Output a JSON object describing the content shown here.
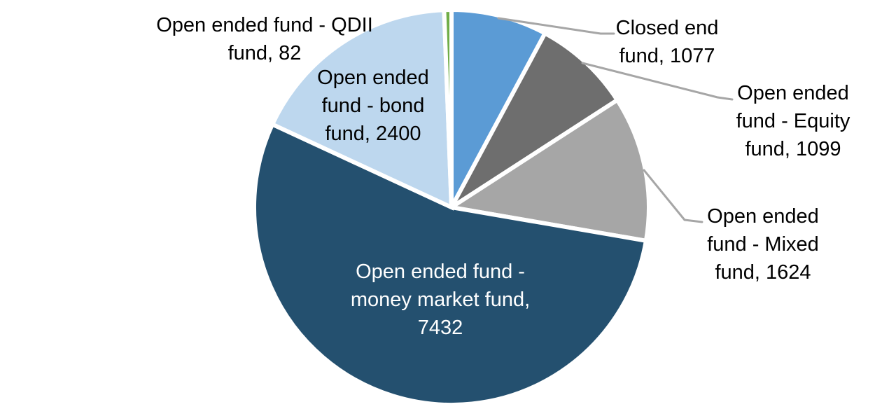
{
  "chart_data": {
    "type": "pie",
    "title": "",
    "legend": "none",
    "background": "#FFFFFF",
    "total": 13714,
    "start_angle_deg": 0,
    "direction": "clockwise",
    "leader_line_color": "#A6A6A6",
    "slices": [
      {
        "id": "closed-end-fund",
        "label": "Closed end fund",
        "value": 1077,
        "color": "#5B9BD5",
        "label_placement": "outside-with-leader",
        "label_lines": [
          "Closed end",
          "fund, 1077"
        ]
      },
      {
        "id": "equity-fund",
        "label": "Open ended fund - Equity fund",
        "value": 1099,
        "color": "#6E6E6E",
        "label_placement": "outside-with-leader",
        "label_lines": [
          "Open ended",
          "fund - Equity",
          "fund, 1099"
        ]
      },
      {
        "id": "mixed-fund",
        "label": "Open ended fund - Mixed fund",
        "value": 1624,
        "color": "#A6A6A6",
        "label_placement": "outside-with-leader",
        "label_lines": [
          "Open ended",
          "fund - Mixed",
          "fund, 1624"
        ]
      },
      {
        "id": "money-market-fund",
        "label": "Open ended fund - money market fund",
        "value": 7432,
        "color": "#24506F",
        "label_placement": "inside",
        "label_text_color": "#FFFFFF",
        "label_lines": [
          "Open ended fund -",
          "money market fund,",
          "7432"
        ]
      },
      {
        "id": "bond-fund",
        "label": "Open ended fund - bond fund",
        "value": 2400,
        "color": "#BDD7EE",
        "label_placement": "inside",
        "label_lines": [
          "Open ended",
          "fund - bond",
          "fund, 2400"
        ]
      },
      {
        "id": "qdii-fund",
        "label": "Open ended fund - QDII fund",
        "value": 82,
        "color": "#70AD47",
        "label_placement": "outside",
        "label_lines": [
          "Open ended fund - QDII",
          "fund, 82"
        ]
      }
    ]
  }
}
